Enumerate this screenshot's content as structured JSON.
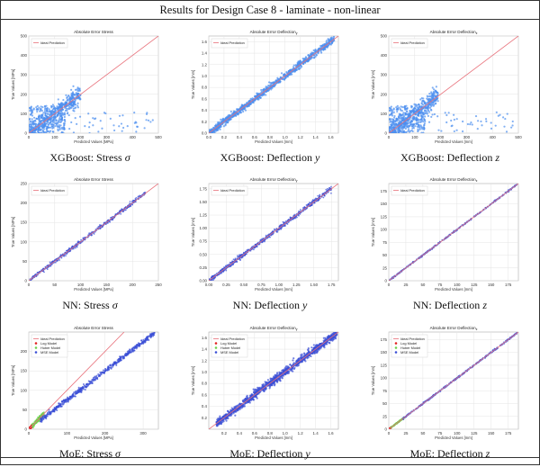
{
  "page_title": "Results for Design Case 8 - laminate - non-linear",
  "colors": {
    "ideal": "#e8707a",
    "mse": "#3a4fd6",
    "xgb": "#4b8ff0",
    "huber": "#6bd14a",
    "log": "#e02020",
    "grid": "#e4e4e4",
    "axis": "#444444"
  },
  "chart_data": [
    {
      "type": "scatter",
      "title": "Absolute Error Stress",
      "xlabel": "Predicted Values [MPa]",
      "ylabel": "True Values [MPa]",
      "caption_text": "XGBoost: Stress",
      "caption_sym": "σ",
      "xlim": [
        0,
        500
      ],
      "ylim": [
        0,
        500
      ],
      "xticks": [
        "0",
        "100",
        "200",
        "300",
        "400",
        "500"
      ],
      "yticks": [
        "0",
        "100",
        "200",
        "300",
        "400",
        "500"
      ],
      "legend": [
        "Ideal Prediction"
      ],
      "series": [
        {
          "name": "XGBoost",
          "color": "#4b8ff0",
          "pattern": "xgb_wide",
          "max": 200
        }
      ]
    },
    {
      "type": "scatter",
      "title": "Absolute Error Deflection",
      "title_sub": "y",
      "xlabel": "Predicted Values [mm]",
      "ylabel": "True Values [mm]",
      "caption_text": "XGBoost: Deflection",
      "caption_sym": "y",
      "xlim": [
        0,
        1.7
      ],
      "ylim": [
        0,
        1.7
      ],
      "xticks": [
        "0.0",
        "0.2",
        "0.4",
        "0.6",
        "0.8",
        "1.0",
        "1.2",
        "1.4",
        "1.6"
      ],
      "yticks": [
        "0.0",
        "0.2",
        "0.4",
        "0.6",
        "0.8",
        "1.0",
        "1.2",
        "1.4",
        "1.6"
      ],
      "legend": [
        "Ideal Prediction"
      ],
      "series": [
        {
          "name": "XGBoost",
          "color": "#4b8ff0",
          "pattern": "band",
          "max": 1.65
        }
      ]
    },
    {
      "type": "scatter",
      "title": "Absolute Error Deflection",
      "title_sub": "z",
      "xlabel": "Predicted Values [mm]",
      "ylabel": "True Values [mm]",
      "caption_text": "XGBoost: Deflection",
      "caption_sym": "z",
      "xlim": [
        0,
        500
      ],
      "ylim": [
        0,
        500
      ],
      "xticks": [
        "0",
        "100",
        "200",
        "300",
        "400",
        "500"
      ],
      "yticks": [
        "0",
        "100",
        "200",
        "300",
        "400",
        "500"
      ],
      "legend": [
        "Ideal Prediction"
      ],
      "series": [
        {
          "name": "XGBoost",
          "color": "#4b8ff0",
          "pattern": "xgb_wide",
          "max": 190
        }
      ]
    },
    {
      "type": "scatter",
      "title": "Absolute Error Stress",
      "xlabel": "Predicted Values [MPa]",
      "ylabel": "True Values [MPa]",
      "caption_text": "NN: Stress",
      "caption_sym": "σ",
      "xlim": [
        0,
        250
      ],
      "ylim": [
        0,
        250
      ],
      "xticks": [
        "0",
        "50",
        "100",
        "150",
        "200",
        "250"
      ],
      "yticks": [
        "0",
        "50",
        "100",
        "150",
        "200",
        "250"
      ],
      "legend": [
        "Ideal Prediction"
      ],
      "series": [
        {
          "name": "NN",
          "color": "#3a4fd6",
          "pattern": "tight",
          "max": 225
        }
      ]
    },
    {
      "type": "scatter",
      "title": "Absolute Error Deflection",
      "title_sub": "y",
      "xlabel": "Predicted Values [mm]",
      "ylabel": "True Values [mm]",
      "caption_text": "NN: Deflection",
      "caption_sym": "y",
      "xlim": [
        0,
        1.85
      ],
      "ylim": [
        0,
        1.85
      ],
      "xticks": [
        "0.00",
        "0.25",
        "0.50",
        "0.75",
        "1.00",
        "1.25",
        "1.50",
        "1.75"
      ],
      "yticks": [
        "0.00",
        "0.25",
        "0.50",
        "0.75",
        "1.00",
        "1.25",
        "1.50",
        "1.75"
      ],
      "legend": [
        "Ideal Prediction"
      ],
      "series": [
        {
          "name": "NN",
          "color": "#3a4fd6",
          "pattern": "band_thin",
          "max": 1.75
        }
      ]
    },
    {
      "type": "scatter",
      "title": "Absolute Error Deflection",
      "title_sub": "z",
      "xlabel": "Predicted Values [mm]",
      "ylabel": "True Values [mm]",
      "caption_text": "NN: Deflection",
      "caption_sym": "z",
      "xlim": [
        0,
        190
      ],
      "ylim": [
        0,
        190
      ],
      "xticks": [
        "0",
        "25",
        "50",
        "75",
        "100",
        "125",
        "150",
        "175"
      ],
      "yticks": [
        "0",
        "25",
        "50",
        "75",
        "100",
        "125",
        "150",
        "175"
      ],
      "legend": [
        "Ideal Prediction"
      ],
      "series": [
        {
          "name": "NN",
          "color": "#3a4fd6",
          "pattern": "line",
          "max": 188
        }
      ]
    },
    {
      "type": "scatter",
      "title": "Absolute Error Stress",
      "xlabel": "Predicted Values [MPa]",
      "ylabel": "True Values [MPa]",
      "caption_text": "MoE: Stress",
      "caption_sym": "σ",
      "xlim": [
        0,
        340
      ],
      "ylim": [
        0,
        250
      ],
      "xticks": [
        "0",
        "100",
        "200",
        "300"
      ],
      "yticks": [
        "0",
        "50",
        "100",
        "150",
        "200"
      ],
      "legend": [
        "Ideal Prediction",
        "Log Model",
        "Huber Model",
        "MSE Model"
      ],
      "series": [
        {
          "name": "MoE",
          "color": "#3a4fd6",
          "pattern": "moe",
          "max": 330
        }
      ]
    },
    {
      "type": "scatter",
      "title": "Absolute Error Deflection",
      "title_sub": "y",
      "xlabel": "Predicted Values [mm]",
      "ylabel": "True Values [mm]",
      "caption_text": "MoE: Deflection",
      "caption_sym": "y",
      "xlim": [
        0,
        1.7
      ],
      "ylim": [
        0,
        1.7
      ],
      "xticks": [
        "0.2",
        "0.4",
        "0.6",
        "0.8",
        "1.0",
        "1.2",
        "1.4",
        "1.6"
      ],
      "yticks": [
        "0.2",
        "0.4",
        "0.6",
        "0.8",
        "1.0",
        "1.2",
        "1.4",
        "1.6"
      ],
      "legend": [
        "Ideal Prediction",
        "Log Model",
        "Huber Model",
        "MSE Model"
      ],
      "series": [
        {
          "name": "MoE",
          "color": "#3a4fd6",
          "pattern": "band_moe",
          "max": 1.68
        }
      ]
    },
    {
      "type": "scatter",
      "title": "Absolute Error Deflection",
      "title_sub": "z",
      "xlabel": "Predicted Values [mm]",
      "ylabel": "True Values [mm]",
      "caption_text": "MoE: Deflection",
      "caption_sym": "z",
      "xlim": [
        0,
        190
      ],
      "ylim": [
        0,
        190
      ],
      "xticks": [
        "0",
        "25",
        "50",
        "75",
        "100",
        "125",
        "150",
        "175"
      ],
      "yticks": [
        "0",
        "25",
        "50",
        "75",
        "100",
        "125",
        "150",
        "175"
      ],
      "legend": [
        "Ideal Prediction",
        "Log Model",
        "Huber Model",
        "MSE Model"
      ],
      "series": [
        {
          "name": "MoE",
          "color": "#3a4fd6",
          "pattern": "line_moe",
          "max": 188
        }
      ]
    }
  ]
}
